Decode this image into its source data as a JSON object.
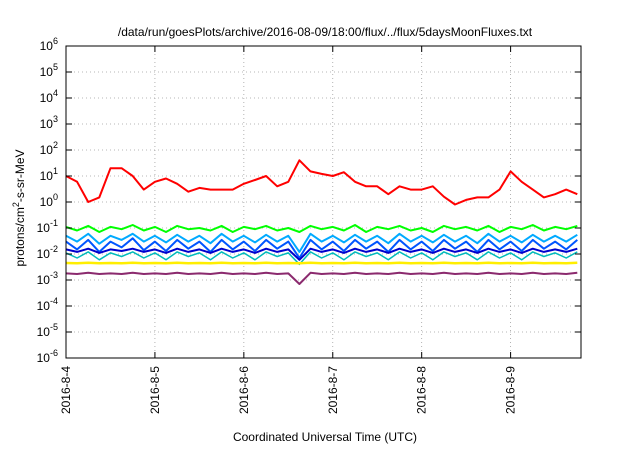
{
  "chart_data": {
    "type": "line",
    "title": "/data/run/goesPlots/archive/2016-08-09/18:00/flux/../flux/5daysMoonFluxes.txt",
    "xlabel": "Coordinated Universal Time (UTC)",
    "ylabel": "protons/cm^2-s-sr-MeV",
    "y_scale": "log",
    "ylim": [
      1e-06,
      1000000
    ],
    "xlim": [
      "2016-08-04",
      "2016-08-09 19:00"
    ],
    "grid": true,
    "legend": "none",
    "x_ticks": [
      "2016-8-4",
      "2016-8-5",
      "2016-8-6",
      "2016-8-7",
      "2016-8-8",
      "2016-8-9"
    ],
    "y_ticks": [
      {
        "mantissa": "10",
        "exponent": "-6"
      },
      {
        "mantissa": "10",
        "exponent": "-5"
      },
      {
        "mantissa": "10",
        "exponent": "-4"
      },
      {
        "mantissa": "10",
        "exponent": "-3"
      },
      {
        "mantissa": "10",
        "exponent": "-2"
      },
      {
        "mantissa": "10",
        "exponent": "-1"
      },
      {
        "mantissa": "10",
        "exponent": "0"
      },
      {
        "mantissa": "10",
        "exponent": "1"
      },
      {
        "mantissa": "10",
        "exponent": "2"
      },
      {
        "mantissa": "10",
        "exponent": "3"
      },
      {
        "mantissa": "10",
        "exponent": "4"
      },
      {
        "mantissa": "10",
        "exponent": "5"
      },
      {
        "mantissa": "10",
        "exponent": "6"
      }
    ],
    "x": [
      "2016-08-04 00:00",
      "2016-08-04 03:00",
      "2016-08-04 06:00",
      "2016-08-04 09:00",
      "2016-08-04 12:00",
      "2016-08-04 15:00",
      "2016-08-04 18:00",
      "2016-08-04 21:00",
      "2016-08-05 00:00",
      "2016-08-05 03:00",
      "2016-08-05 06:00",
      "2016-08-05 09:00",
      "2016-08-05 12:00",
      "2016-08-05 15:00",
      "2016-08-05 18:00",
      "2016-08-05 21:00",
      "2016-08-06 00:00",
      "2016-08-06 03:00",
      "2016-08-06 06:00",
      "2016-08-06 09:00",
      "2016-08-06 12:00",
      "2016-08-06 15:00",
      "2016-08-06 18:00",
      "2016-08-06 21:00",
      "2016-08-07 00:00",
      "2016-08-07 03:00",
      "2016-08-07 06:00",
      "2016-08-07 09:00",
      "2016-08-07 12:00",
      "2016-08-07 15:00",
      "2016-08-07 18:00",
      "2016-08-07 21:00",
      "2016-08-08 00:00",
      "2016-08-08 03:00",
      "2016-08-08 06:00",
      "2016-08-08 09:00",
      "2016-08-08 12:00",
      "2016-08-08 15:00",
      "2016-08-08 18:00",
      "2016-08-08 21:00",
      "2016-08-09 00:00",
      "2016-08-09 03:00",
      "2016-08-09 06:00",
      "2016-08-09 09:00",
      "2016-08-09 12:00",
      "2016-08-09 15:00",
      "2016-08-09 18:00"
    ],
    "series": [
      {
        "color": "#ff0000",
        "width": 2,
        "values": [
          10,
          6,
          1,
          1.5,
          20,
          20,
          10,
          3,
          6,
          8,
          5,
          2.5,
          3.5,
          3,
          3,
          3,
          5,
          7,
          10,
          4,
          6,
          40,
          15,
          12,
          10,
          14,
          6,
          4,
          4,
          2,
          4,
          3,
          3,
          4,
          1.6,
          0.8,
          1.2,
          1.5,
          1.5,
          3,
          15,
          6,
          3,
          1.5,
          2,
          3,
          2
        ]
      },
      {
        "color": "#00ff00",
        "width": 2,
        "values": [
          0.11,
          0.08,
          0.12,
          0.07,
          0.11,
          0.09,
          0.13,
          0.08,
          0.11,
          0.07,
          0.12,
          0.09,
          0.1,
          0.08,
          0.12,
          0.07,
          0.11,
          0.09,
          0.12,
          0.08,
          0.1,
          0.07,
          0.12,
          0.09,
          0.11,
          0.08,
          0.13,
          0.07,
          0.11,
          0.09,
          0.12,
          0.08,
          0.1,
          0.07,
          0.12,
          0.09,
          0.11,
          0.08,
          0.12,
          0.07,
          0.11,
          0.09,
          0.13,
          0.08,
          0.11,
          0.09,
          0.12
        ]
      },
      {
        "color": "#00aaff",
        "width": 2,
        "values": [
          0.05,
          0.03,
          0.06,
          0.025,
          0.05,
          0.035,
          0.06,
          0.03,
          0.05,
          0.028,
          0.055,
          0.03,
          0.05,
          0.026,
          0.06,
          0.03,
          0.05,
          0.028,
          0.055,
          0.03,
          0.05,
          0.012,
          0.06,
          0.03,
          0.05,
          0.028,
          0.055,
          0.03,
          0.05,
          0.026,
          0.06,
          0.03,
          0.05,
          0.028,
          0.055,
          0.03,
          0.05,
          0.026,
          0.06,
          0.03,
          0.05,
          0.028,
          0.055,
          0.03,
          0.05,
          0.03,
          0.055
        ]
      },
      {
        "color": "#0055ff",
        "width": 2,
        "values": [
          0.03,
          0.015,
          0.035,
          0.012,
          0.03,
          0.018,
          0.04,
          0.014,
          0.03,
          0.013,
          0.035,
          0.016,
          0.03,
          0.012,
          0.035,
          0.015,
          0.03,
          0.013,
          0.035,
          0.016,
          0.03,
          0.007,
          0.035,
          0.015,
          0.03,
          0.013,
          0.035,
          0.016,
          0.03,
          0.012,
          0.035,
          0.015,
          0.03,
          0.013,
          0.035,
          0.016,
          0.03,
          0.012,
          0.035,
          0.015,
          0.03,
          0.013,
          0.035,
          0.016,
          0.03,
          0.015,
          0.035
        ]
      },
      {
        "color": "#0000cc",
        "width": 2,
        "values": [
          0.015,
          0.012,
          0.016,
          0.011,
          0.015,
          0.013,
          0.016,
          0.012,
          0.015,
          0.011,
          0.016,
          0.012,
          0.015,
          0.011,
          0.016,
          0.012,
          0.015,
          0.011,
          0.016,
          0.012,
          0.015,
          0.006,
          0.016,
          0.012,
          0.015,
          0.011,
          0.016,
          0.012,
          0.015,
          0.011,
          0.016,
          0.012,
          0.015,
          0.011,
          0.016,
          0.012,
          0.015,
          0.011,
          0.016,
          0.012,
          0.015,
          0.011,
          0.016,
          0.012,
          0.015,
          0.012,
          0.016
        ]
      },
      {
        "color": "#00bbbb",
        "width": 1.5,
        "values": [
          0.011,
          0.007,
          0.012,
          0.006,
          0.011,
          0.008,
          0.012,
          0.007,
          0.011,
          0.006,
          0.012,
          0.008,
          0.011,
          0.006,
          0.012,
          0.007,
          0.011,
          0.006,
          0.012,
          0.008,
          0.011,
          0.004,
          0.012,
          0.007,
          0.011,
          0.006,
          0.012,
          0.008,
          0.011,
          0.006,
          0.012,
          0.007,
          0.011,
          0.006,
          0.012,
          0.008,
          0.011,
          0.006,
          0.012,
          0.007,
          0.011,
          0.006,
          0.012,
          0.008,
          0.011,
          0.007,
          0.012
        ]
      },
      {
        "color": "#ffee00",
        "width": 2.5,
        "values": [
          0.0045,
          0.0044,
          0.0046,
          0.0044,
          0.0045,
          0.0044,
          0.0046,
          0.0044,
          0.0045,
          0.0044,
          0.0046,
          0.0044,
          0.0045,
          0.0044,
          0.0046,
          0.0044,
          0.0045,
          0.0044,
          0.0046,
          0.0044,
          0.0045,
          0.0044,
          0.0046,
          0.0044,
          0.0045,
          0.0044,
          0.0046,
          0.0044,
          0.0045,
          0.0044,
          0.0046,
          0.0044,
          0.0045,
          0.0044,
          0.0046,
          0.0044,
          0.0045,
          0.0044,
          0.0046,
          0.0044,
          0.0045,
          0.0044,
          0.0046,
          0.0044,
          0.0045,
          0.0044,
          0.0046
        ]
      },
      {
        "color": "#8b2a6e",
        "width": 2,
        "values": [
          0.0018,
          0.0017,
          0.0019,
          0.0017,
          0.0018,
          0.0017,
          0.0019,
          0.0017,
          0.0018,
          0.0017,
          0.0019,
          0.0017,
          0.0018,
          0.0017,
          0.0019,
          0.0017,
          0.0018,
          0.0017,
          0.0019,
          0.0017,
          0.0018,
          0.0007,
          0.0019,
          0.0017,
          0.0018,
          0.0017,
          0.0019,
          0.0017,
          0.0018,
          0.0017,
          0.0019,
          0.0017,
          0.0018,
          0.0017,
          0.0019,
          0.0017,
          0.0018,
          0.0017,
          0.0019,
          0.0017,
          0.0018,
          0.0017,
          0.0019,
          0.0017,
          0.0018,
          0.0017,
          0.0019
        ]
      }
    ]
  }
}
